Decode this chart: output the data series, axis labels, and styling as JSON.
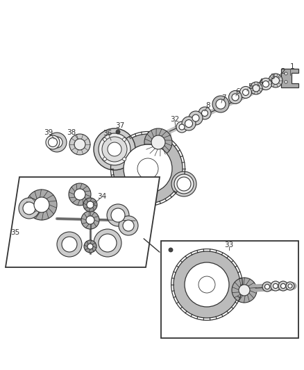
{
  "bg_color": "#ffffff",
  "lc": "#333333",
  "gc": "#888888",
  "fc": "#cccccc",
  "figsize": [
    4.38,
    5.33
  ],
  "dpi": 100,
  "shaft_color": "#999999",
  "gear_fill": "#bbbbbb",
  "gear_dark": "#666666",
  "white": "#ffffff",
  "box_line": "#333333",
  "label_color": "#333333",
  "label_fs": 7.5
}
